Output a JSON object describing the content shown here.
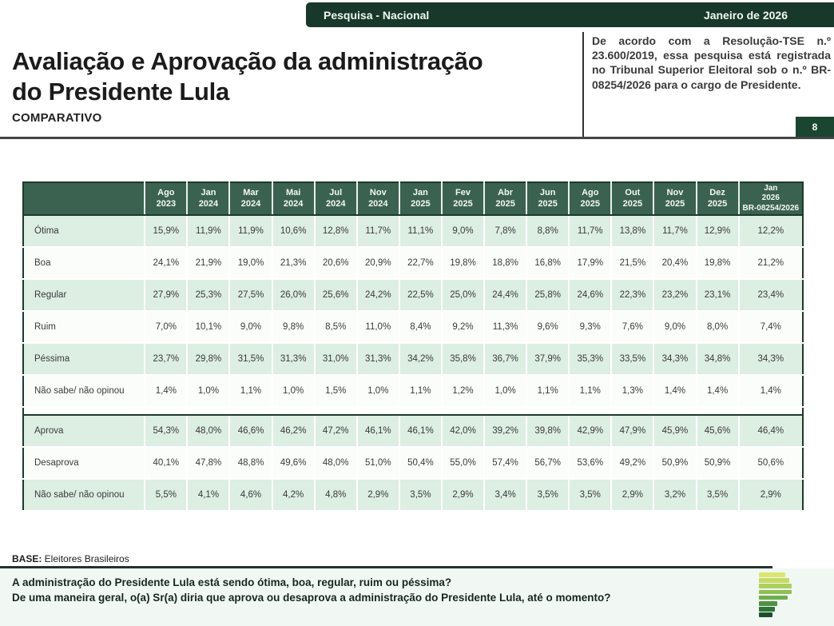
{
  "header": {
    "left_tag": "Pesquisa - Nacional",
    "right_tag": "Janeiro de 2026"
  },
  "title": {
    "line1": "Avaliação e Aprovação da administração",
    "line2": "do Presidente Lula",
    "subtitle": "COMPARATIVO"
  },
  "registration_note": "De acordo com a Resolução-TSE n.º 23.600/2019, essa pesquisa está registrada no Tribunal Superior Eleitoral sob o n.º BR-08254/2026 para o cargo de Presidente.",
  "page_number": "8",
  "table": {
    "columns": [
      "Ago\n2023",
      "Jan\n2024",
      "Mar\n2024",
      "Mai\n2024",
      "Jul\n2024",
      "Nov\n2024",
      "Jan\n2025",
      "Fev\n2025",
      "Abr\n2025",
      "Jun\n2025",
      "Ago\n2025",
      "Out\n2025",
      "Nov\n2025",
      "Dez\n2025",
      "Jan\n2026\nBR-08254/2026"
    ],
    "section_evaluation": {
      "rows": [
        {
          "label": "Ótima",
          "values": [
            "15,9%",
            "11,9%",
            "11,9%",
            "10,6%",
            "12,8%",
            "11,7%",
            "11,1%",
            "9,0%",
            "7,8%",
            "8,8%",
            "11,7%",
            "13,8%",
            "11,7%",
            "12,9%",
            "12,2%"
          ]
        },
        {
          "label": "Boa",
          "values": [
            "24,1%",
            "21,9%",
            "19,0%",
            "21,3%",
            "20,6%",
            "20,9%",
            "22,7%",
            "19,8%",
            "18,8%",
            "16,8%",
            "17,9%",
            "21,5%",
            "20,4%",
            "19,8%",
            "21,2%"
          ]
        },
        {
          "label": "Regular",
          "values": [
            "27,9%",
            "25,3%",
            "27,5%",
            "26,0%",
            "25,6%",
            "24,2%",
            "22,5%",
            "25,0%",
            "24,4%",
            "25,8%",
            "24,6%",
            "22,3%",
            "23,2%",
            "23,1%",
            "23,4%"
          ]
        },
        {
          "label": "Ruim",
          "values": [
            "7,0%",
            "10,1%",
            "9,0%",
            "9,8%",
            "8,5%",
            "11,0%",
            "8,4%",
            "9,2%",
            "11,3%",
            "9,6%",
            "9,3%",
            "7,6%",
            "9,0%",
            "8,0%",
            "7,4%"
          ]
        },
        {
          "label": "Péssima",
          "values": [
            "23,7%",
            "29,8%",
            "31,5%",
            "31,3%",
            "31,0%",
            "31,3%",
            "34,2%",
            "35,8%",
            "36,7%",
            "37,9%",
            "35,3%",
            "33,5%",
            "34,3%",
            "34,8%",
            "34,3%"
          ]
        },
        {
          "label": "Não sabe/ não opinou",
          "values": [
            "1,4%",
            "1,0%",
            "1,1%",
            "1,0%",
            "1,5%",
            "1,0%",
            "1,1%",
            "1,2%",
            "1,0%",
            "1,1%",
            "1,1%",
            "1,3%",
            "1,4%",
            "1,4%",
            "1,4%"
          ]
        }
      ]
    },
    "section_approval": {
      "rows": [
        {
          "label": "Aprova",
          "values": [
            "54,3%",
            "48,0%",
            "46,6%",
            "46,2%",
            "47,2%",
            "46,1%",
            "46,1%",
            "42,0%",
            "39,2%",
            "39,8%",
            "42,9%",
            "47,9%",
            "45,9%",
            "45,6%",
            "46,4%"
          ]
        },
        {
          "label": "Desaprova",
          "values": [
            "40,1%",
            "47,8%",
            "48,8%",
            "49,6%",
            "48,0%",
            "51,0%",
            "50,4%",
            "55,0%",
            "57,4%",
            "56,7%",
            "53,6%",
            "49,2%",
            "50,9%",
            "50,9%",
            "50,6%"
          ]
        },
        {
          "label": "Não sabe/ não opinou",
          "values": [
            "5,5%",
            "4,1%",
            "4,6%",
            "4,2%",
            "4,8%",
            "2,9%",
            "3,5%",
            "2,9%",
            "3,4%",
            "3,5%",
            "3,5%",
            "2,9%",
            "3,2%",
            "3,5%",
            "2,9%"
          ]
        }
      ]
    }
  },
  "base_note": {
    "label": "BASE:",
    "text": " Eleitores Brasileiros"
  },
  "questions": [
    "A administração do Presidente Lula está sendo ótima, boa, regular, ruim ou péssima?",
    "De uma maneira geral, o(a) Sr(a) diria que aprova ou desaprova a administração do Presidente Lula, até o momento?"
  ],
  "logo": {
    "name": "parana-pesquisas-logo",
    "bars": [
      {
        "color": "#dce472",
        "width": 33
      },
      {
        "color": "#c6da64",
        "width": 38
      },
      {
        "color": "#adcf5d",
        "width": 41
      },
      {
        "color": "#8fc054",
        "width": 41
      },
      {
        "color": "#6fae4d",
        "width": 36
      },
      {
        "color": "#4e9244",
        "width": 23
      },
      {
        "color": "#2f7338",
        "width": 20
      },
      {
        "color": "#1a512c",
        "width": 17
      }
    ]
  },
  "colors": {
    "accent_dark": "#17382b",
    "header_green": "#3b6250",
    "row_green": "#ddeee3",
    "row_white": "#fbfdfb",
    "border_dark": "#1c3a2b",
    "question_bg": "#f1f8f3",
    "page_box_green": "#1a4530"
  }
}
